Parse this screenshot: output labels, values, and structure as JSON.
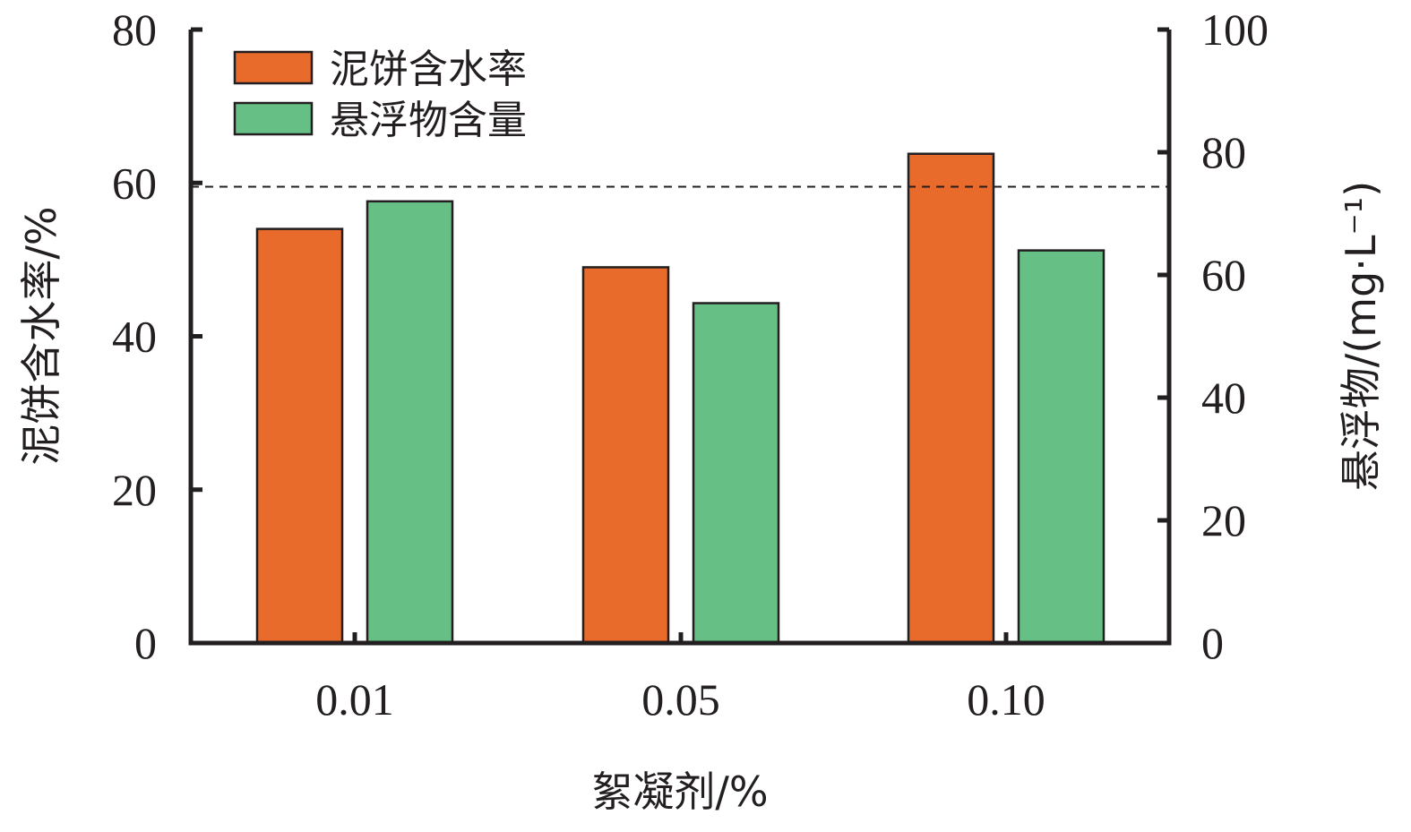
{
  "chart_data": {
    "type": "bar",
    "categories": [
      "0.01",
      "0.05",
      "0.10"
    ],
    "xlabel": "絮凝剂/%",
    "ylabel_left": "泥饼含水率/%",
    "ylabel_right": "悬浮物/(mg·L⁻¹)",
    "ylim_left": [
      0,
      80
    ],
    "ylim_right": [
      0,
      100
    ],
    "yticks_left": [
      0,
      20,
      40,
      60,
      80
    ],
    "yticks_right": [
      0,
      20,
      40,
      60,
      80,
      100
    ],
    "grid": false,
    "legend_position": "top-left",
    "reference_line": {
      "axis": "left",
      "value": 59.5,
      "style": "dashed"
    },
    "series": [
      {
        "name": "泥饼含水率",
        "axis": "left",
        "color": "#e86b2b",
        "values": [
          54,
          49,
          63.8
        ]
      },
      {
        "name": "悬浮物含量",
        "axis": "right",
        "color": "#66c085",
        "values": [
          72,
          55.4,
          64
        ]
      }
    ]
  }
}
